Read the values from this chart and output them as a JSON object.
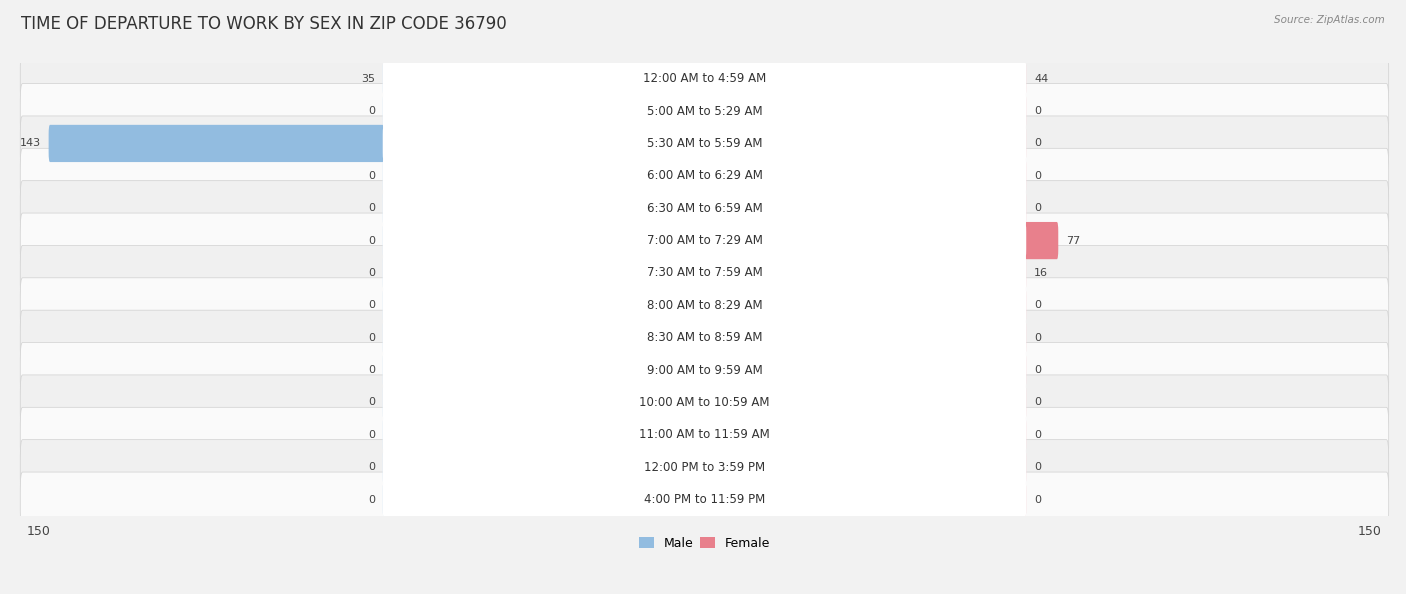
{
  "title": "TIME OF DEPARTURE TO WORK BY SEX IN ZIP CODE 36790",
  "source": "Source: ZipAtlas.com",
  "categories": [
    "12:00 AM to 4:59 AM",
    "5:00 AM to 5:29 AM",
    "5:30 AM to 5:59 AM",
    "6:00 AM to 6:29 AM",
    "6:30 AM to 6:59 AM",
    "7:00 AM to 7:29 AM",
    "7:30 AM to 7:59 AM",
    "8:00 AM to 8:29 AM",
    "8:30 AM to 8:59 AM",
    "9:00 AM to 9:59 AM",
    "10:00 AM to 10:59 AM",
    "11:00 AM to 11:59 AM",
    "12:00 PM to 3:59 PM",
    "4:00 PM to 11:59 PM"
  ],
  "male_values": [
    35,
    0,
    143,
    0,
    0,
    0,
    0,
    0,
    0,
    0,
    0,
    0,
    0,
    0
  ],
  "female_values": [
    44,
    0,
    0,
    0,
    0,
    77,
    16,
    0,
    0,
    0,
    0,
    0,
    0,
    0
  ],
  "male_color": "#92bce0",
  "female_color": "#e8808c",
  "male_bg_color": "#c5ddf0",
  "female_bg_color": "#f2c0c8",
  "row_bg_light": "#f0f0f0",
  "row_bg_dark": "#e4e4e4",
  "row_outline": "#d8d8d8",
  "axis_max": 150,
  "label_area_half": 70,
  "label_fontsize": 8.5,
  "title_fontsize": 12,
  "legend_fontsize": 9,
  "value_fontsize": 8,
  "source_fontsize": 7.5
}
